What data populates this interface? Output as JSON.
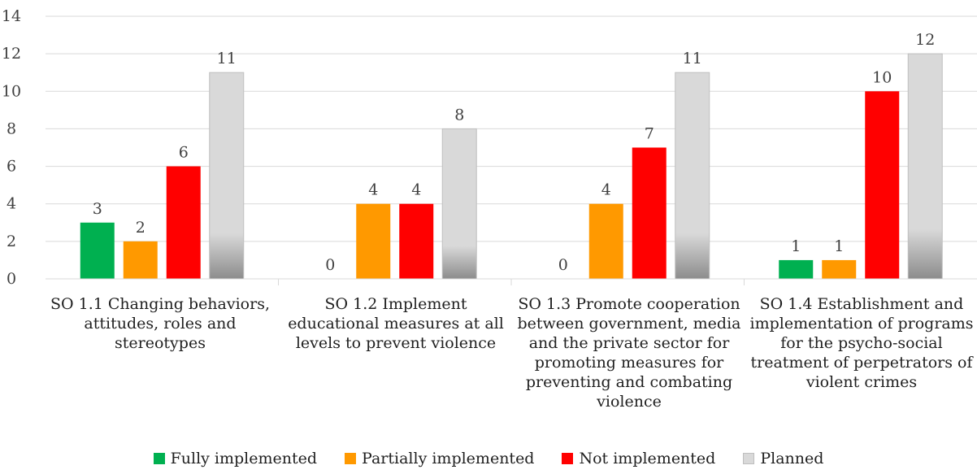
{
  "chart_data": {
    "type": "bar",
    "categories": [
      "SO 1.1 Changing behaviors, attitudes, roles and stereotypes",
      "SO 1.2 Implement educational measures at all levels to prevent violence",
      "SO 1.3 Promote cooperation between government, media and the private sector for promoting measures for preventing and combating violence",
      "SO 1.4 Establishment and implementation of programs for the psycho-social treatment of perpetrators of violent crimes"
    ],
    "series": [
      {
        "name": "Fully implemented",
        "values": [
          3,
          0,
          0,
          1
        ],
        "color": "#00b050"
      },
      {
        "name": "Partially implemented",
        "values": [
          2,
          4,
          4,
          1
        ],
        "color": "#ff9900"
      },
      {
        "name": "Not implemented",
        "values": [
          6,
          4,
          7,
          10
        ],
        "color": "#ff0000"
      },
      {
        "name": "Planned",
        "values": [
          11,
          8,
          11,
          12
        ],
        "color": "#d9d9d9"
      }
    ],
    "ylim": [
      0,
      14
    ],
    "yticks": [
      "0",
      "2",
      "4",
      "6",
      "8",
      "10",
      "12",
      "14"
    ],
    "grid": true,
    "legend_position": "bottom",
    "data_labels": true
  }
}
